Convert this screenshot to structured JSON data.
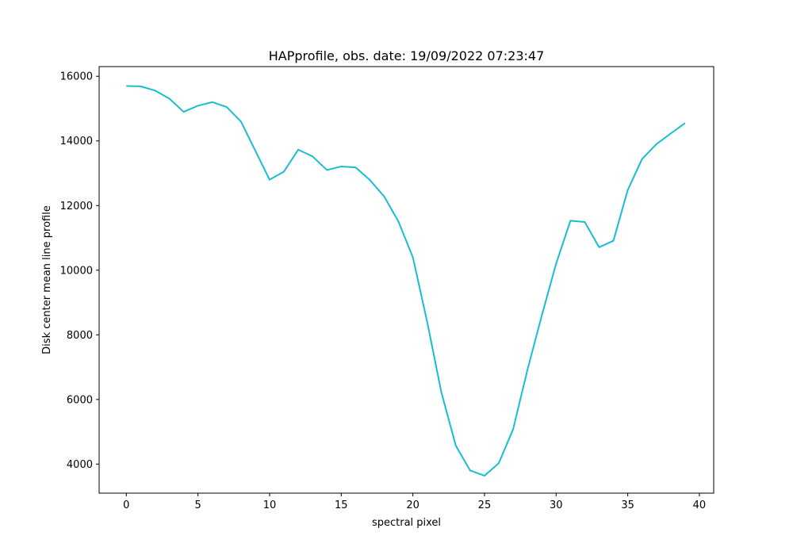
{
  "chart_data": {
    "type": "line",
    "title": "HAPprofile, obs. date: 19/09/2022 07:23:47",
    "xlabel": "spectral pixel",
    "ylabel": "Disk center mean line profile",
    "xlim": [
      -1.9,
      41.0
    ],
    "ylim": [
      3100,
      16300
    ],
    "xticks": [
      0,
      5,
      10,
      15,
      20,
      25,
      30,
      35,
      40
    ],
    "yticks": [
      4000,
      6000,
      8000,
      10000,
      12000,
      14000,
      16000
    ],
    "grid": false,
    "line_color": "#17becf",
    "series": [
      {
        "x": [
          0,
          1,
          2,
          3,
          4,
          5,
          6,
          7,
          8,
          9,
          10,
          11,
          12,
          13,
          14,
          15,
          16,
          17,
          18,
          19,
          20,
          21,
          22,
          23,
          24,
          25,
          26,
          27,
          28,
          29,
          30,
          31,
          32,
          33,
          34,
          35,
          36,
          37,
          38,
          39
        ],
        "values": [
          15700,
          15690,
          15560,
          15310,
          14900,
          15090,
          15200,
          15050,
          14600,
          13700,
          12800,
          13050,
          13730,
          13520,
          13100,
          13210,
          13180,
          12790,
          12280,
          11500,
          10400,
          8400,
          6200,
          4570,
          3800,
          3640,
          4030,
          5080,
          6920,
          8600,
          10200,
          11530,
          11490,
          10710,
          10910,
          12480,
          13440,
          13900,
          14230,
          14550
        ]
      }
    ]
  }
}
